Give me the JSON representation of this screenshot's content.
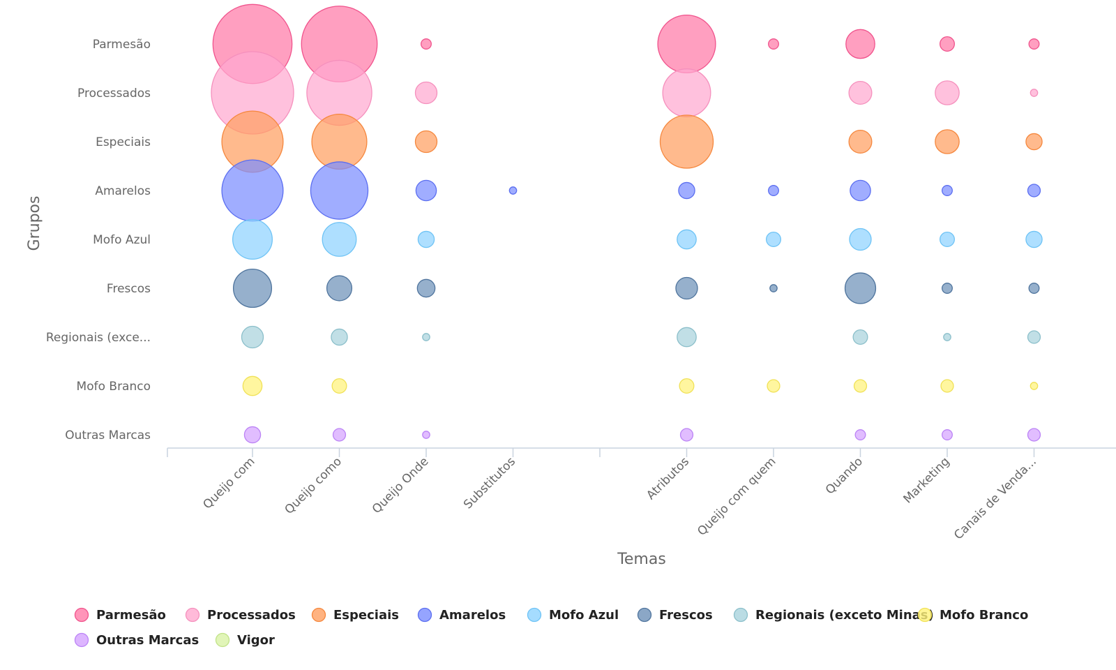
{
  "chart_data": {
    "type": "bubble",
    "xlabel": "Temas",
    "ylabel": "Grupos",
    "categories_x": [
      {
        "label": "Queijo com",
        "visible": true
      },
      {
        "label": "Queijo como",
        "visible": true
      },
      {
        "label": "Queijo Onde",
        "visible": true
      },
      {
        "label": "Substitutos",
        "visible": true
      },
      {
        "label": "",
        "visible": true
      },
      {
        "label": "Atributos",
        "visible": true
      },
      {
        "label": "Queijo com quem",
        "visible": true
      },
      {
        "label": "Quando",
        "visible": true
      },
      {
        "label": "Marketing",
        "visible": true
      },
      {
        "label": "Canais de Venda...",
        "visible": true
      }
    ],
    "categories_y": [
      "Parmesão",
      "Processados",
      "Especiais",
      "Amarelos",
      "Mofo Azul",
      "Frescos",
      "Regionais (exce...",
      "Mofo Branco",
      "Outras Marcas"
    ],
    "series": [
      {
        "name": "Parmesão",
        "color": "#ff7aa8",
        "stroke": "#f0538c",
        "values": [
          120,
          110,
          2,
          null,
          null,
          64,
          2,
          16,
          4,
          2
        ]
      },
      {
        "name": "Processados",
        "color": "#ffa9d0",
        "stroke": "#f590bd",
        "values": [
          130,
          81,
          9,
          null,
          null,
          44,
          null,
          10,
          11,
          1
        ]
      },
      {
        "name": "Especiais",
        "color": "#ffa061",
        "stroke": "#f5873d",
        "values": [
          72,
          58,
          9,
          null,
          null,
          54,
          null,
          10,
          11,
          5
        ]
      },
      {
        "name": "Amarelos",
        "color": "#7b8dff",
        "stroke": "#5b6ef0",
        "values": [
          72,
          63,
          8,
          1,
          null,
          5,
          2,
          8,
          2,
          3
        ]
      },
      {
        "name": "Mofo Azul",
        "color": "#8fd3ff",
        "stroke": "#6ec3f5",
        "values": [
          30,
          22,
          5,
          null,
          null,
          7,
          4,
          9,
          4,
          5
        ]
      },
      {
        "name": "Frescos",
        "color": "#6e91b8",
        "stroke": "#4f749d",
        "values": [
          28,
          12,
          6,
          null,
          null,
          9,
          1,
          18,
          2,
          2
        ]
      },
      {
        "name": "Regionais (exceto Minas)",
        "color": "#a9d3dd",
        "stroke": "#8bbfca",
        "values": [
          9,
          5,
          1,
          null,
          null,
          7,
          null,
          4,
          1,
          3
        ]
      },
      {
        "name": "Mofo Branco",
        "color": "#fff27a",
        "stroke": "#f0e156",
        "values": [
          7,
          4,
          null,
          null,
          null,
          4,
          3,
          3,
          3,
          1
        ]
      },
      {
        "name": "Outras Marcas",
        "color": "#d5a3ff",
        "stroke": "#bb83f5",
        "values": [
          5,
          3,
          1,
          null,
          null,
          3,
          null,
          2,
          2,
          3
        ]
      },
      {
        "name": "Vigor",
        "color": "#d9f2a6",
        "stroke": "#c1e288",
        "values": [
          null,
          null,
          null,
          null,
          null,
          null,
          null,
          null,
          null,
          null
        ]
      }
    ]
  },
  "legend": [
    {
      "label": "Parmesão",
      "color": "#ff7aa8",
      "stroke": "#f0538c"
    },
    {
      "label": "Processados",
      "color": "#ffa9d0",
      "stroke": "#f590bd"
    },
    {
      "label": "Especiais",
      "color": "#ffa061",
      "stroke": "#f5873d"
    },
    {
      "label": "Amarelos",
      "color": "#7b8dff",
      "stroke": "#5b6ef0"
    },
    {
      "label": "Mofo Azul",
      "color": "#8fd3ff",
      "stroke": "#6ec3f5"
    },
    {
      "label": "Frescos",
      "color": "#6e91b8",
      "stroke": "#4f749d"
    },
    {
      "label": "Regionais (exceto Minas)",
      "color": "#a9d3dd",
      "stroke": "#8bbfca"
    },
    {
      "label": "Mofo Branco",
      "color": "#fff27a",
      "stroke": "#f0e156"
    },
    {
      "label": "Outras Marcas",
      "color": "#d5a3ff",
      "stroke": "#bb83f5"
    },
    {
      "label": "Vigor",
      "color": "#d9f2a6",
      "stroke": "#c1e288"
    }
  ]
}
